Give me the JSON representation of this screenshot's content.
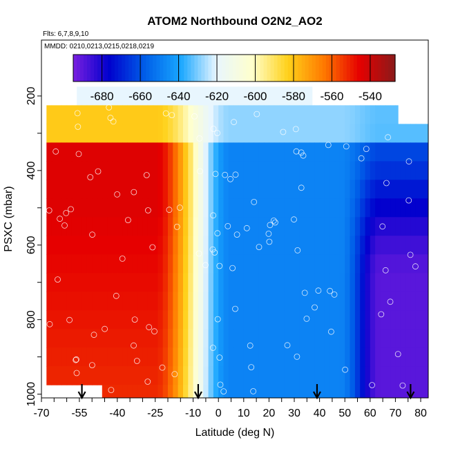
{
  "chart_data": {
    "type": "heatmap",
    "title": "ATOM2 Northbound O2N2_AO2",
    "subtitle_flights": "Flts: 6,7,8,9,10",
    "subtitle_dates": "MMDD: 0210,0213,0215,0218,0219",
    "xlabel": "Latitude (deg N)",
    "ylabel": "PSXC (mbar)",
    "xlim": [
      -70,
      83
    ],
    "ylim": [
      1010,
      50
    ],
    "y_reversed": true,
    "x_ticks": [
      "-70",
      "-55",
      "-40",
      "-25",
      "-10",
      "0",
      "10",
      "20",
      "30",
      "40",
      "50",
      "60",
      "70",
      "80"
    ],
    "y_ticks": [
      "200",
      "400",
      "600",
      "800",
      "1000"
    ],
    "colorbar": {
      "range": [
        -695,
        -527
      ],
      "ticks": [
        "-680",
        "-660",
        "-640",
        "-620",
        "-600",
        "-580",
        "-560",
        "-540"
      ],
      "colors": [
        "#7a1fe0",
        "#0000cd",
        "#005ee8",
        "#18a6ff",
        "#e8f6ff",
        "#ffffcc",
        "#ffd11a",
        "#ff7a00",
        "#e60000",
        "#8b1a1a"
      ]
    },
    "grid": false,
    "pressure_levels": [
      200,
      250,
      300,
      350,
      400,
      450,
      500,
      550,
      600,
      650,
      700,
      750,
      800,
      850,
      900,
      950,
      1000
    ],
    "profile_arrows_lat": [
      -54,
      -8,
      39,
      76
    ]
  }
}
